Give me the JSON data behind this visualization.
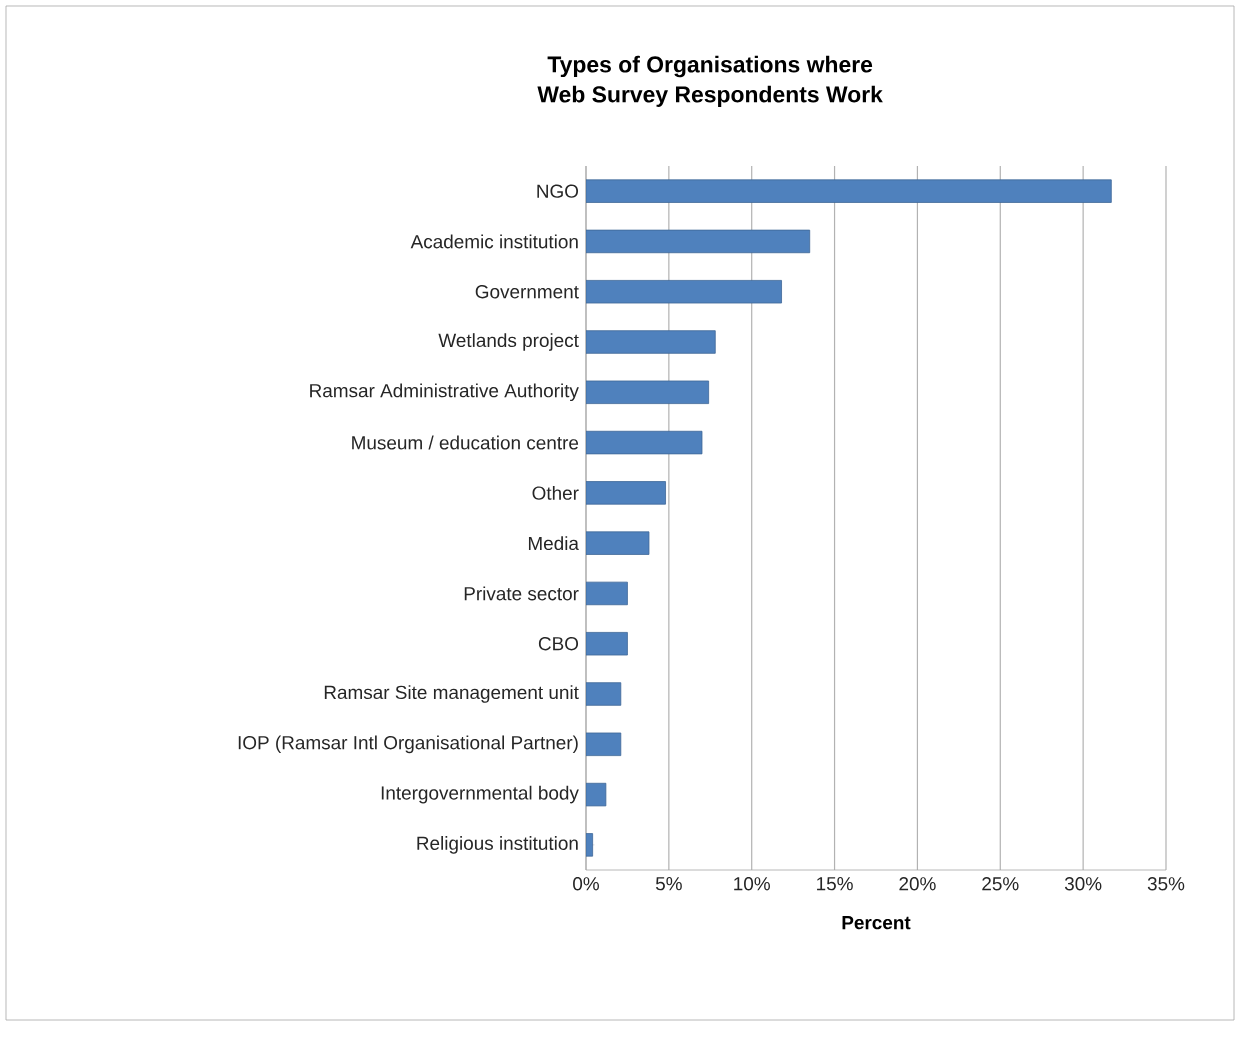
{
  "chart_data": {
    "type": "bar",
    "orientation": "horizontal",
    "title": "Types of Organisations where Web Survey Respondents Work",
    "xlabel": "Percent",
    "categories": [
      "NGO",
      "Academic institution",
      "Government",
      "Wetlands project",
      "Ramsar Administrative Authority",
      "Museum / education centre",
      "Other",
      "Media",
      "Private sector",
      "CBO",
      "Ramsar Site management unit",
      "IOP (Ramsar Intl Organisational Partner)",
      "Intergovernmental body",
      "Religious institution"
    ],
    "values": [
      31.7,
      13.5,
      11.8,
      7.8,
      7.4,
      7.0,
      4.8,
      3.8,
      2.5,
      2.5,
      2.1,
      2.1,
      1.2,
      0.4
    ],
    "color": "#4f81bd",
    "xlim": [
      0,
      35
    ],
    "xticks": [
      {
        "value": 0,
        "label": "0%"
      },
      {
        "value": 5,
        "label": "5%"
      },
      {
        "value": 10,
        "label": "10%"
      },
      {
        "value": 15,
        "label": "15%"
      },
      {
        "value": 20,
        "label": "20%"
      },
      {
        "value": 25,
        "label": "25%"
      },
      {
        "value": 30,
        "label": "30%"
      },
      {
        "value": 35,
        "label": "35%"
      }
    ],
    "grid": "x"
  }
}
